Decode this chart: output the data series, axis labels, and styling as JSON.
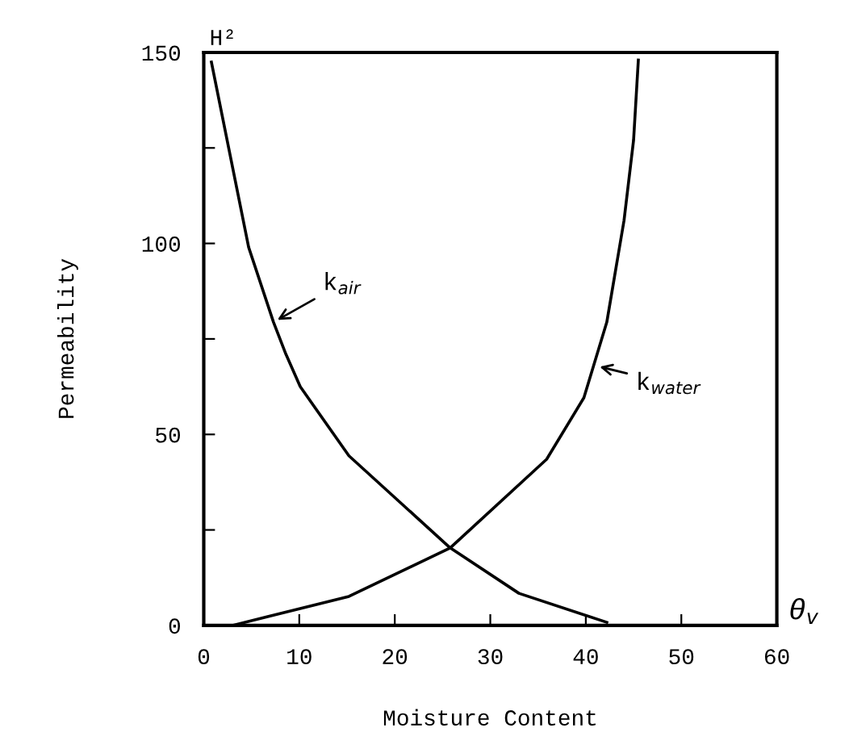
{
  "chart_data": {
    "type": "line",
    "xlabel": "Moisture Content",
    "ylabel": "Permeability",
    "series": [
      {
        "color": "#000000",
        "x": [
          0.8,
          4.7,
          7.3,
          8.6,
          10.1,
          15.2,
          25.8,
          33,
          42.2
        ],
        "values": [
          147.5,
          99,
          79.4,
          71,
          62.5,
          44.4,
          20.3,
          8.4,
          0.8
        ]
      },
      {
        "color": "#000000",
        "x": [
          3,
          15.2,
          25.8,
          35.9,
          39.8,
          42.2,
          44,
          45,
          45.5
        ],
        "values": [
          0,
          7.6,
          20.3,
          43.5,
          59.6,
          79.4,
          106,
          127,
          148
        ]
      }
    ],
    "annotations": [
      {
        "text": "k$_{air}$",
        "x": 7.3,
        "y": 79.4
      },
      {
        "text": "k$_{water}$",
        "x": 41,
        "y": 68
      },
      "H²",
      "θ$_{v}$"
    ],
    "xlim": [
      0,
      60
    ],
    "ylim": [
      0,
      150
    ],
    "xticks": [
      0,
      10,
      20,
      30,
      40,
      50,
      60
    ],
    "yticks": [
      0,
      {
        "value": 25,
        "label": null
      },
      50,
      {
        "value": 75,
        "label": null
      },
      100,
      {
        "value": 125,
        "label": null
      },
      150
    ],
    "grid": false,
    "legend": false,
    "marker": "none",
    "line_style": "solid"
  }
}
